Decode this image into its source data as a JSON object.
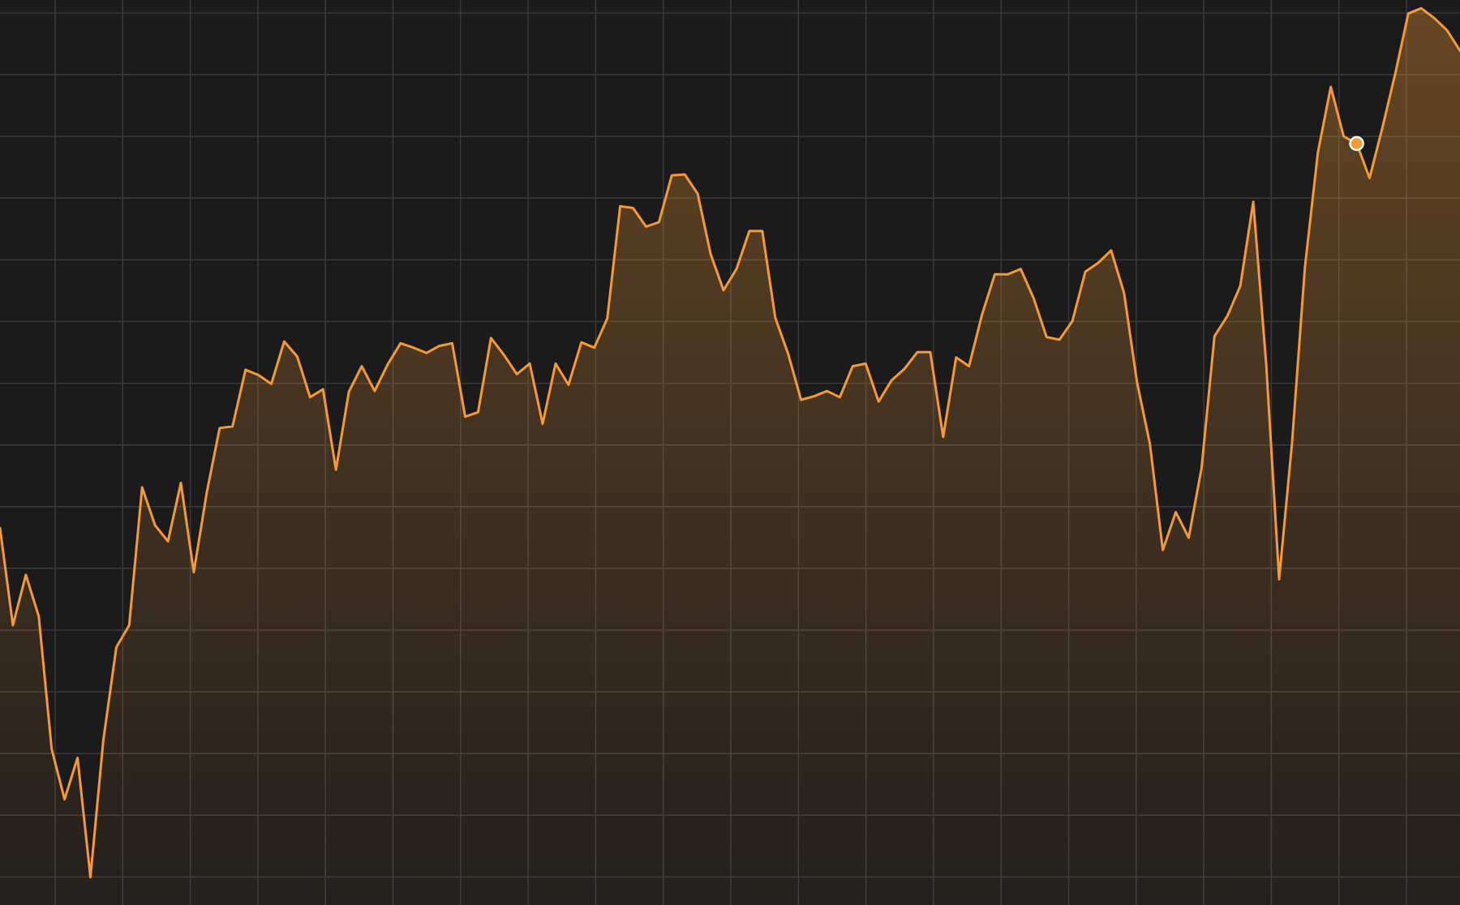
{
  "chart_data": {
    "type": "area",
    "title": "",
    "xlabel": "",
    "ylabel": "",
    "grid": true,
    "legend": "none",
    "x_grid_count": 22,
    "y_grid_count": 15,
    "ylim": [
      0,
      100
    ],
    "series": [
      {
        "color": "#f59a34",
        "fill": "#f59a34",
        "highlight_index": 105,
        "values": [
          41,
          30,
          35.7,
          31,
          16,
          10.3,
          15,
          1.5,
          17,
          27.5,
          30,
          45.6,
          41.3,
          39.5,
          46.1,
          36,
          45,
          52.3,
          52.5,
          58.9,
          58.3,
          57.3,
          62.1,
          60.4,
          55.8,
          56.7,
          47.6,
          56.4,
          59.3,
          56.5,
          59.5,
          61.9,
          61.4,
          60.8,
          61.6,
          61.9,
          53.6,
          54.1,
          62.5,
          60.6,
          58.4,
          59.6,
          52.8,
          59.6,
          57.2,
          62,
          61.4,
          64.7,
          77.4,
          77.2,
          75.1,
          75.6,
          80.9,
          81,
          78.8,
          72,
          67.9,
          70.3,
          74.6,
          74.6,
          64.8,
          60.7,
          55.5,
          55.9,
          56.5,
          55.8,
          59.3,
          59.6,
          55.3,
          57.7,
          59,
          60.9,
          60.9,
          51.3,
          60.3,
          59.3,
          65.1,
          69.7,
          69.7,
          70.3,
          67,
          62.6,
          62.3,
          64.4,
          70,
          71,
          72.4,
          67.6,
          57.5,
          50.5,
          38.5,
          42.8,
          39.9,
          47.8,
          62.7,
          65,
          68.4,
          77.9,
          59.5,
          35.2,
          50.6,
          70.5,
          83.5,
          90.9,
          85.3,
          84.5,
          80.6,
          86.3,
          92.5,
          99.2,
          99.8,
          98.7,
          97.3,
          95
        ]
      }
    ]
  }
}
